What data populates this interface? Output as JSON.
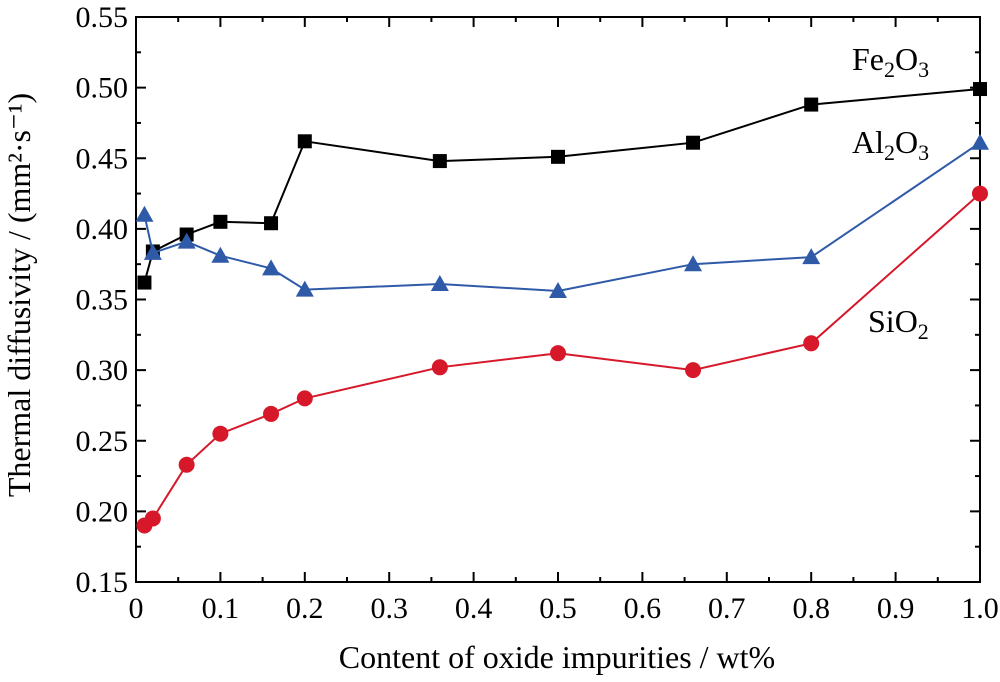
{
  "chart_data": {
    "type": "line",
    "title": "",
    "xlabel": "Content of oxide impurities / wt%",
    "ylabel": "Thermal diffusivity / (mm²·s⁻¹)",
    "xlim": [
      0,
      1.0
    ],
    "ylim": [
      0.15,
      0.55
    ],
    "x_ticks": [
      "0",
      "0.1",
      "0.2",
      "0.3",
      "0.4",
      "0.5",
      "0.6",
      "0.7",
      "0.8",
      "0.9",
      "1.0"
    ],
    "y_ticks": [
      "0.15",
      "0.20",
      "0.25",
      "0.30",
      "0.35",
      "0.40",
      "0.45",
      "0.50",
      "0.55"
    ],
    "grid": false,
    "series": [
      {
        "name": "Fe₂O₃",
        "name_parts": [
          "Fe",
          "2",
          "O",
          "3"
        ],
        "color": "#000000",
        "marker": "square",
        "x": [
          0.01,
          0.02,
          0.06,
          0.1,
          0.16,
          0.2,
          0.36,
          0.5,
          0.66,
          0.8,
          1.0
        ],
        "values": [
          0.362,
          0.384,
          0.396,
          0.405,
          0.404,
          0.462,
          0.448,
          0.451,
          0.461,
          0.488,
          0.499
        ]
      },
      {
        "name": "Al₂O₃",
        "name_parts": [
          "Al",
          "2",
          "O",
          "3"
        ],
        "color": "#2e5aa8",
        "marker": "triangle",
        "x": [
          0.01,
          0.02,
          0.06,
          0.1,
          0.16,
          0.2,
          0.36,
          0.5,
          0.66,
          0.8,
          1.0
        ],
        "values": [
          0.41,
          0.383,
          0.391,
          0.381,
          0.372,
          0.357,
          0.361,
          0.356,
          0.375,
          0.38,
          0.461
        ]
      },
      {
        "name": "SiO₂",
        "name_parts": [
          "SiO",
          "2"
        ],
        "color": "#d7182a",
        "marker": "circle",
        "x": [
          0.01,
          0.02,
          0.06,
          0.1,
          0.16,
          0.2,
          0.36,
          0.5,
          0.66,
          0.8,
          1.0
        ],
        "values": [
          0.19,
          0.195,
          0.233,
          0.255,
          0.269,
          0.28,
          0.302,
          0.312,
          0.3,
          0.319,
          0.425
        ]
      }
    ]
  }
}
